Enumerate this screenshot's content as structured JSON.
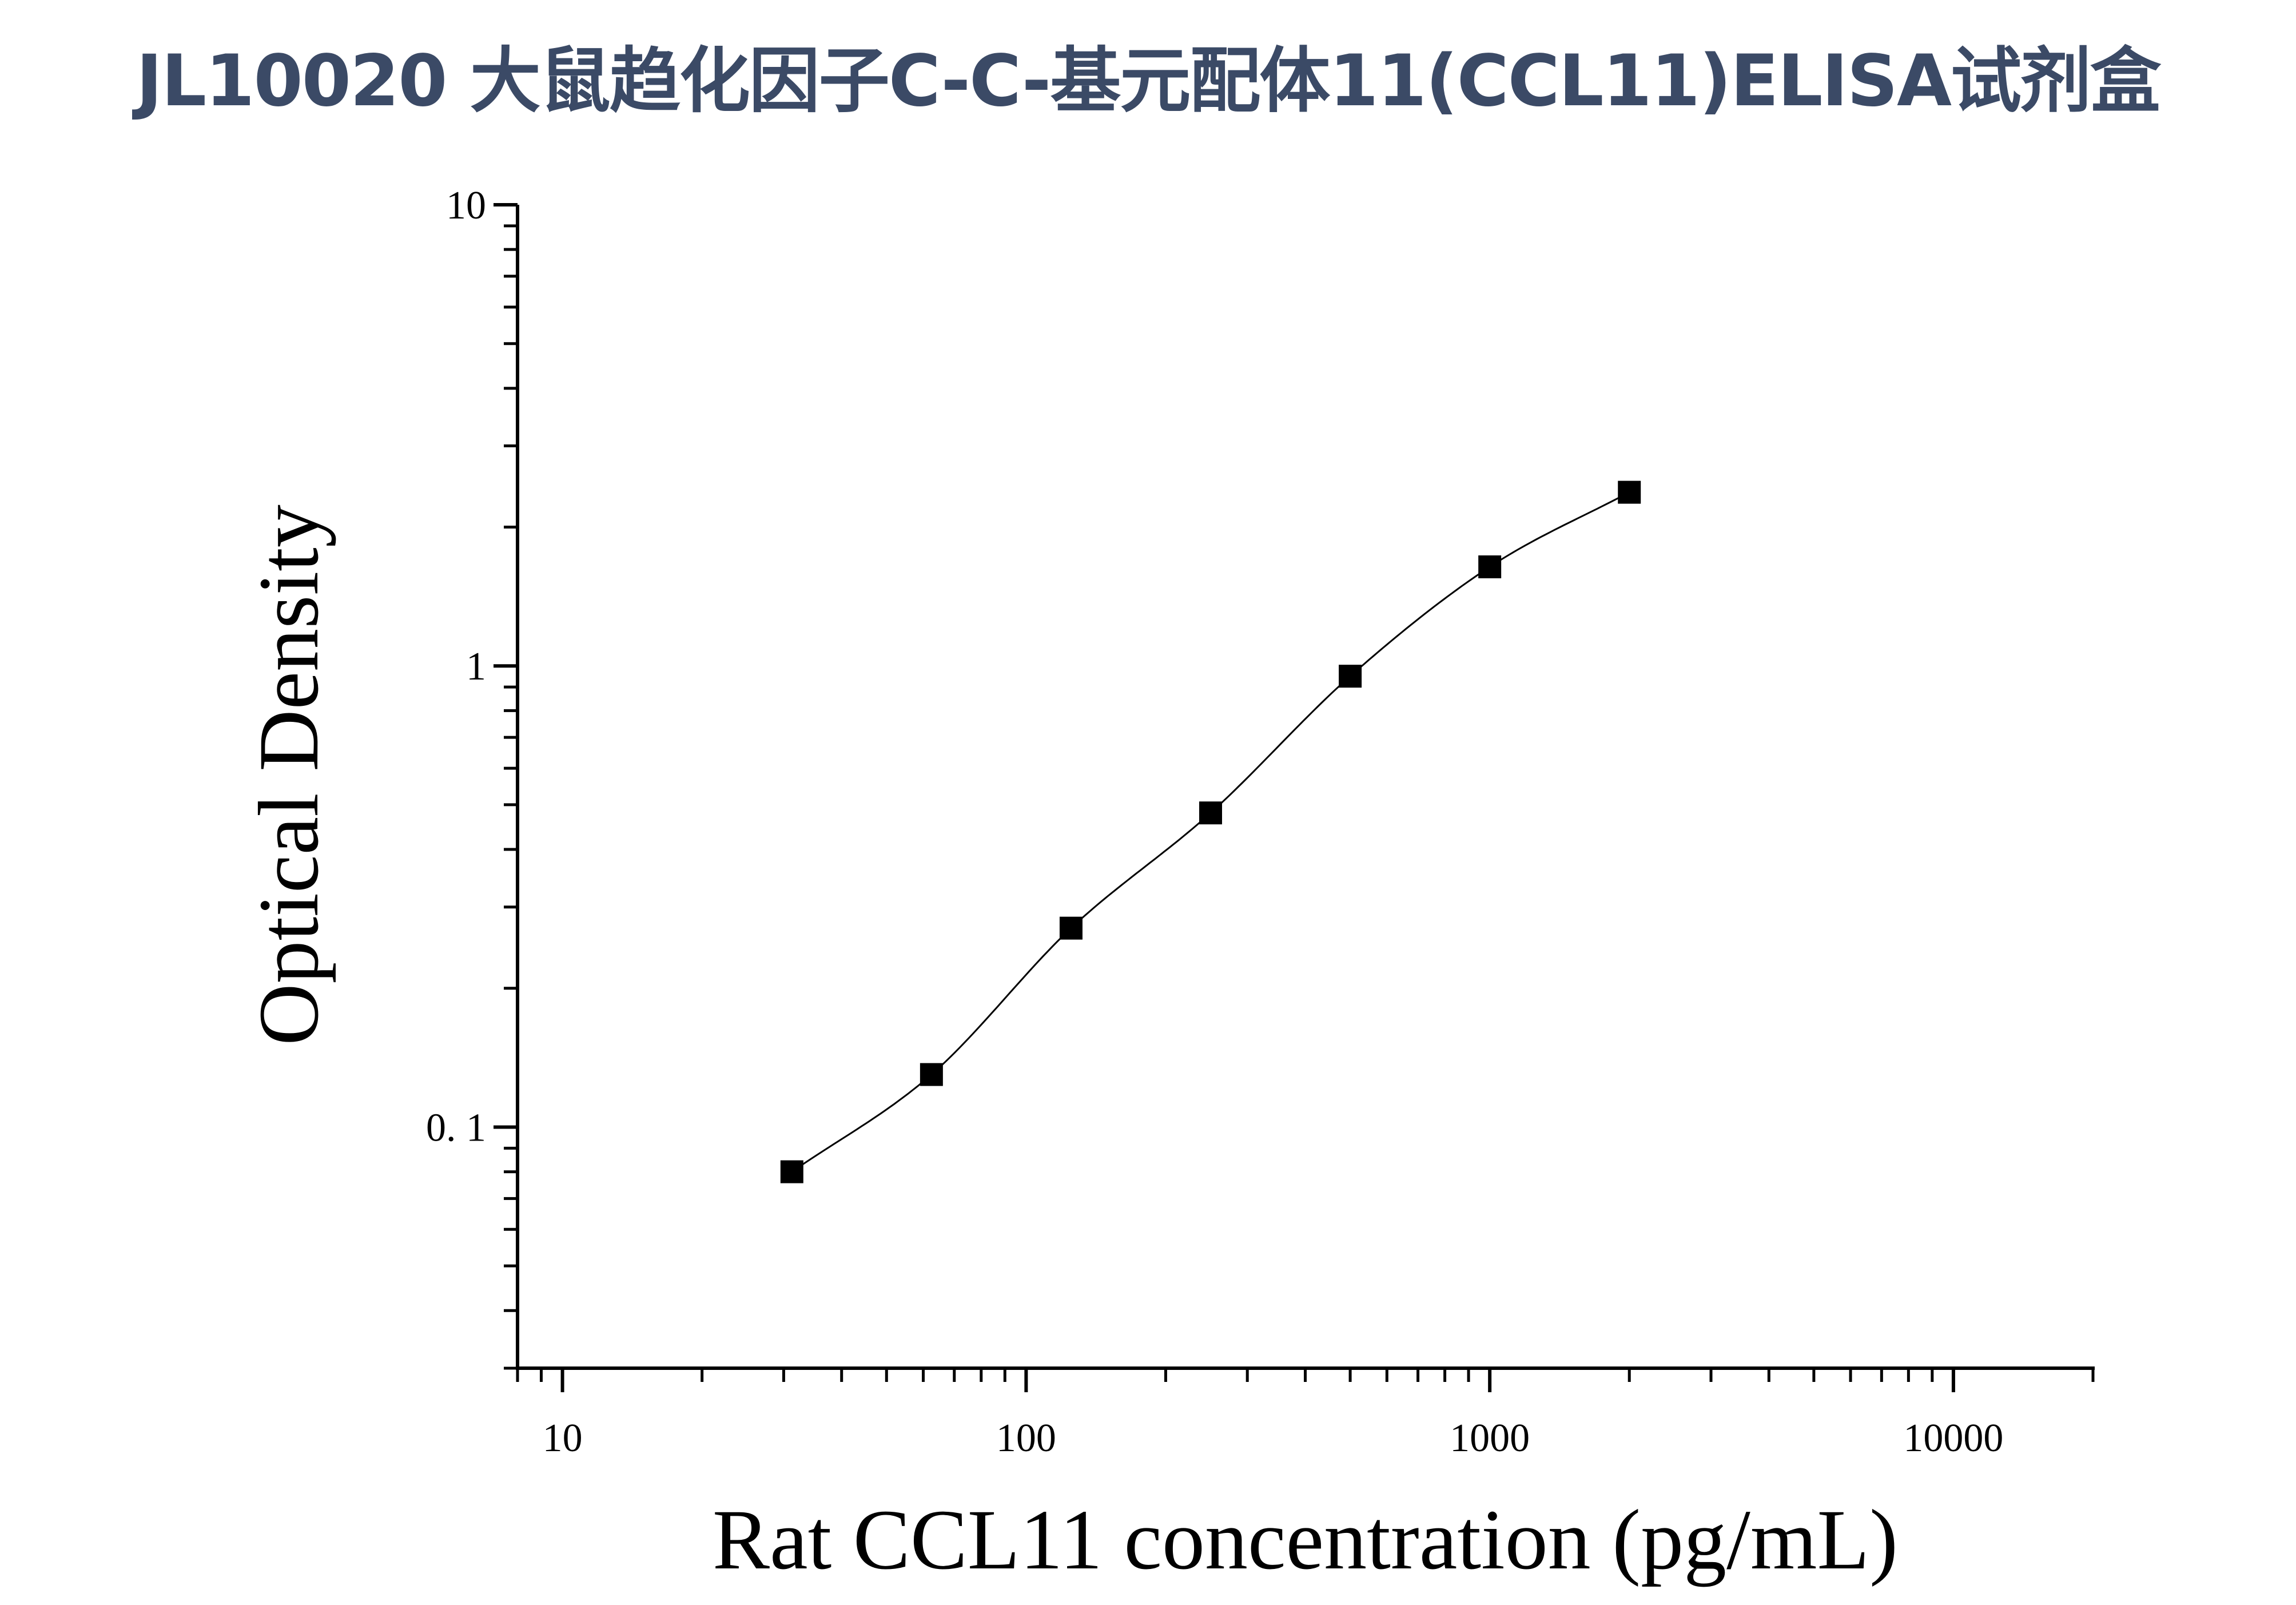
{
  "page": {
    "title": "JL10020 大鼠趋化因子C-C-基元配体11(CCL11)ELISA试剂盒",
    "title_color": "#3b4a66"
  },
  "chart_data": {
    "type": "scatter",
    "title": "",
    "xlabel": "Rat CCL11 concentration (pg/mL)",
    "ylabel": "Optical Density",
    "xscale": "log",
    "yscale": "log",
    "xlim": [
      8,
      20000
    ],
    "ylim": [
      0.03,
      10
    ],
    "xticks": [
      10,
      100,
      1000,
      10000
    ],
    "xtick_labels": [
      "10",
      "100",
      "1000",
      "10000"
    ],
    "yticks": [
      0.1,
      1,
      10
    ],
    "ytick_labels": [
      "0. 1",
      "1",
      "10"
    ],
    "grid": false,
    "legend": "none",
    "marker": "square",
    "marker_color": "#000000",
    "curve_color": "#000000",
    "series": [
      {
        "x": [
          31.25,
          62.5,
          125,
          250,
          500,
          1000,
          2000
        ],
        "y": [
          0.08,
          0.13,
          0.27,
          0.48,
          0.95,
          1.64,
          2.38
        ]
      }
    ]
  }
}
